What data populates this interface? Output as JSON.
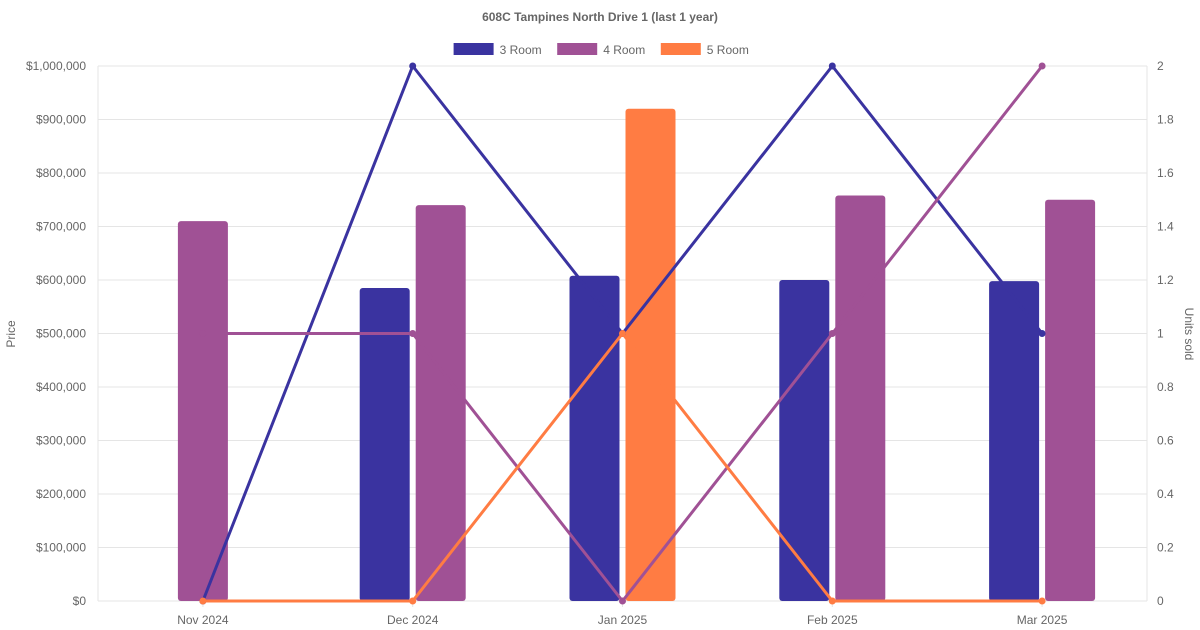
{
  "chart_data": {
    "type": "bar",
    "title": "608C Tampines North Drive 1 (last 1 year)",
    "categories": [
      "Nov 2024",
      "Dec 2024",
      "Jan 2025",
      "Feb 2025",
      "Mar 2025"
    ],
    "ylabel": "Price",
    "y2label": "Units sold",
    "ylim": [
      0,
      1000000
    ],
    "y2lim": [
      0,
      2
    ],
    "yticks": [
      "$0",
      "$100,000",
      "$200,000",
      "$300,000",
      "$400,000",
      "$500,000",
      "$600,000",
      "$700,000",
      "$800,000",
      "$900,000",
      "$1,000,000"
    ],
    "y2ticks": [
      "0",
      "0.2",
      "0.4",
      "0.6",
      "0.8",
      "1",
      "1.2",
      "1.4",
      "1.6",
      "1.8",
      "2"
    ],
    "legend_position": "top-center",
    "grid": true,
    "series": [
      {
        "name": "3 Room",
        "color": "#3a33a0",
        "price": [
          null,
          585000,
          608000,
          600000,
          598000
        ],
        "units": [
          0,
          2,
          1,
          2,
          1
        ]
      },
      {
        "name": "4 Room",
        "color": "#a05195",
        "price": [
          710000,
          740000,
          null,
          758000,
          750000
        ],
        "units": [
          1,
          1,
          0,
          1,
          2
        ]
      },
      {
        "name": "5 Room",
        "color": "#ff7c43",
        "price": [
          null,
          null,
          920000,
          null,
          null
        ],
        "units": [
          0,
          0,
          1,
          0,
          0
        ]
      }
    ]
  }
}
